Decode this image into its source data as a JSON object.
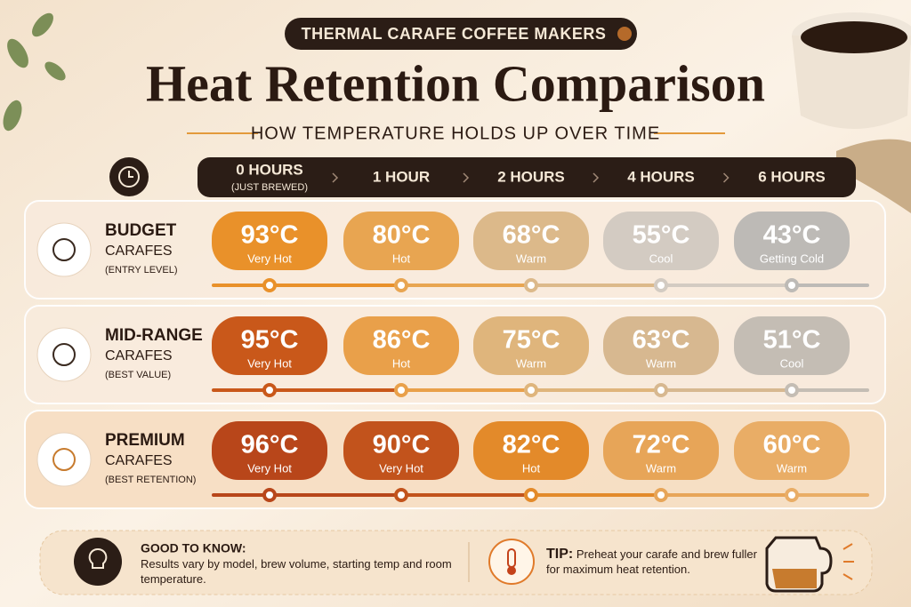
{
  "header": {
    "badge": "THERMAL CARAFE COFFEE MAKERS",
    "title": "Heat Retention Comparison",
    "subtitle": "HOW TEMPERATURE HOLDS UP OVER TIME"
  },
  "columns": [
    {
      "label": "0 HOURS",
      "sub": "(JUST BREWED)"
    },
    {
      "label": "1 HOUR"
    },
    {
      "label": "2 HOURS"
    },
    {
      "label": "4 HOURS"
    },
    {
      "label": "6 HOURS"
    }
  ],
  "rows": [
    {
      "name": "BUDGET",
      "line2": "CARAFES",
      "note": "(ENTRY LEVEL)",
      "cells": [
        {
          "temp": "93°C",
          "label": "Very Hot",
          "color": "#e9912a"
        },
        {
          "temp": "80°C",
          "label": "Hot",
          "color": "#e8a551"
        },
        {
          "temp": "68°C",
          "label": "Warm",
          "color": "#dcb98a"
        },
        {
          "temp": "55°C",
          "label": "Cool",
          "color": "#d3cbc2"
        },
        {
          "temp": "43°C",
          "label": "Getting Cold",
          "color": "#bdbab6"
        }
      ]
    },
    {
      "name": "MID-RANGE",
      "line2": "CARAFES",
      "note": "(BEST VALUE)",
      "cells": [
        {
          "temp": "95°C",
          "label": "Very Hot",
          "color": "#c9581a"
        },
        {
          "temp": "86°C",
          "label": "Hot",
          "color": "#e9a04a"
        },
        {
          "temp": "75°C",
          "label": "Warm",
          "color": "#dfb57c"
        },
        {
          "temp": "63°C",
          "label": "Warm",
          "color": "#d7b890"
        },
        {
          "temp": "51°C",
          "label": "Cool",
          "color": "#c4bdb4"
        }
      ]
    },
    {
      "name": "PREMIUM",
      "line2": "CARAFES",
      "note": "(BEST RETENTION)",
      "cells": [
        {
          "temp": "96°C",
          "label": "Very Hot",
          "color": "#b8461a"
        },
        {
          "temp": "90°C",
          "label": "Very Hot",
          "color": "#c2531c"
        },
        {
          "temp": "82°C",
          "label": "Hot",
          "color": "#e38a2a"
        },
        {
          "temp": "72°C",
          "label": "Warm",
          "color": "#e7a558"
        },
        {
          "temp": "60°C",
          "label": "Warm",
          "color": "#e9ad66"
        }
      ]
    }
  ],
  "footer": {
    "good_title": "GOOD TO KNOW:",
    "good_text": "Results vary by model, brew volume, starting temp and room temperature.",
    "tip_title": "TIP:",
    "tip_text": "Preheat your carafe and brew fuller for maximum heat retention."
  }
}
